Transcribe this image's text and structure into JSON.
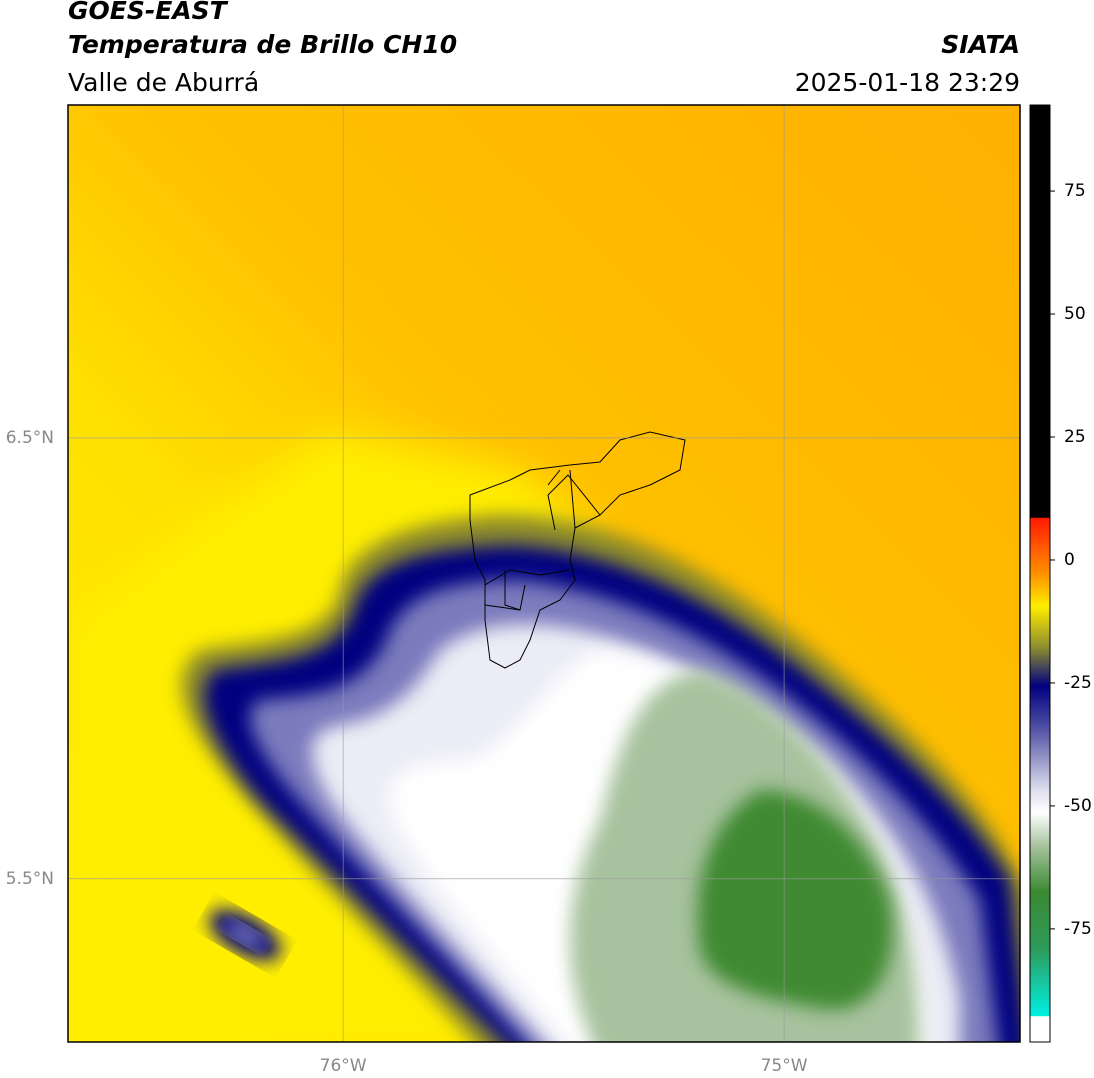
{
  "header": {
    "title": "GOES-EAST",
    "subtitle": "Temperatura de Brillo CH10",
    "region": "Valle de Aburrá",
    "source": "SIATA",
    "datetime": "2025-01-18 23:29"
  },
  "chart_data": {
    "type": "map",
    "xlim": [
      -76.624,
      -74.465
    ],
    "ylim": [
      5.13,
      7.255
    ],
    "xticks": [
      {
        "value": -76,
        "label": "76°W"
      },
      {
        "value": -75,
        "label": "75°W"
      }
    ],
    "yticks": [
      {
        "value": 5.5,
        "label": "5.5°N"
      },
      {
        "value": 6.5,
        "label": "6.5°N"
      }
    ],
    "grid": true,
    "colorbar": {
      "lim": [
        -98,
        92.5
      ],
      "ticks": [
        -75,
        -50,
        -25,
        0,
        25,
        50,
        75
      ]
    }
  }
}
